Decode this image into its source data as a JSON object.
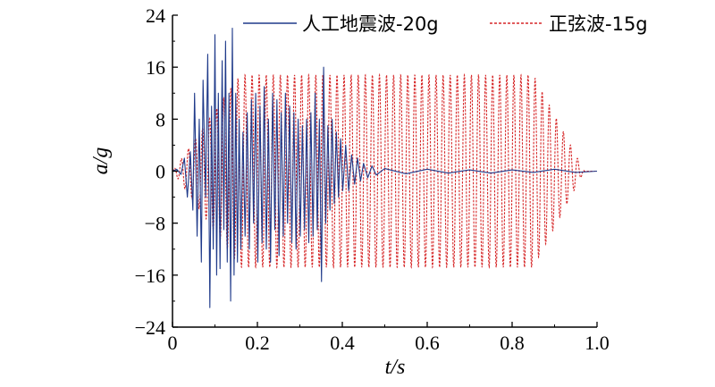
{
  "chart_data": {
    "type": "line",
    "xlabel": "t/s",
    "ylabel": "a/g",
    "xlim": [
      0,
      1.0
    ],
    "ylim": [
      -24,
      24
    ],
    "x_ticks": [
      "0",
      "0.2",
      "0.4",
      "0.6",
      "0.8",
      "1.0"
    ],
    "y_ticks": [
      "−24",
      "−16",
      "−8",
      "0",
      "8",
      "16",
      "24"
    ],
    "grid": false,
    "legend_position": "top-right",
    "series": [
      {
        "name": "人工地震波-20g",
        "color": "#1f3a8a",
        "style": "solid",
        "x": [
          0.0,
          0.01,
          0.02,
          0.028,
          0.035,
          0.042,
          0.048,
          0.052,
          0.058,
          0.063,
          0.068,
          0.072,
          0.078,
          0.083,
          0.088,
          0.092,
          0.096,
          0.1,
          0.104,
          0.108,
          0.112,
          0.117,
          0.121,
          0.125,
          0.129,
          0.133,
          0.137,
          0.141,
          0.145,
          0.149,
          0.153,
          0.157,
          0.161,
          0.166,
          0.171,
          0.176,
          0.181,
          0.186,
          0.191,
          0.196,
          0.201,
          0.206,
          0.211,
          0.216,
          0.221,
          0.226,
          0.231,
          0.236,
          0.241,
          0.246,
          0.251,
          0.256,
          0.261,
          0.266,
          0.271,
          0.276,
          0.281,
          0.286,
          0.291,
          0.296,
          0.301,
          0.306,
          0.311,
          0.316,
          0.321,
          0.326,
          0.331,
          0.336,
          0.341,
          0.346,
          0.351,
          0.356,
          0.361,
          0.366,
          0.371,
          0.376,
          0.381,
          0.386,
          0.391,
          0.396,
          0.401,
          0.408,
          0.415,
          0.422,
          0.429,
          0.436,
          0.443,
          0.45,
          0.46,
          0.47,
          0.48,
          0.5,
          0.55,
          0.6,
          0.65,
          0.7,
          0.75,
          0.8,
          0.85,
          0.9,
          0.95,
          1.0
        ],
        "y": [
          0,
          0.3,
          -0.5,
          2,
          -4,
          3,
          -6,
          12,
          -10,
          8,
          -14,
          14,
          -4,
          18,
          -21,
          10,
          -12,
          21,
          -16,
          12,
          -15,
          17,
          -9,
          20,
          -14,
          12,
          -20,
          22,
          -16,
          12,
          -14,
          8,
          -12,
          6,
          -10,
          9,
          -12,
          11,
          -8,
          12,
          -14,
          10,
          -11,
          13,
          -12,
          8,
          -14,
          12,
          -9,
          11,
          -13,
          9,
          -10,
          12,
          -8,
          10,
          -11,
          9,
          -12,
          8,
          -10,
          7,
          -9,
          8,
          -11,
          9,
          -10,
          12,
          -9,
          8,
          -17,
          16,
          -8,
          7,
          -6,
          8,
          -5,
          6,
          -4,
          5,
          -3,
          4,
          -3,
          2.5,
          -2,
          2,
          -1.5,
          1.2,
          -1,
          0.8,
          -0.6,
          0.4,
          -0.4,
          0.3,
          -0.3,
          0.2,
          -0.3,
          0.2,
          -0.2,
          0.3,
          -0.2,
          0
        ]
      },
      {
        "name": "正弦波-15g",
        "color": "#d62728",
        "style": "dashed",
        "frequency_hz": 60,
        "amplitude_g": 14.8,
        "ramp_up_end_s": 0.16,
        "ramp_down_start_s": 0.85,
        "end_s": 0.97
      }
    ]
  }
}
